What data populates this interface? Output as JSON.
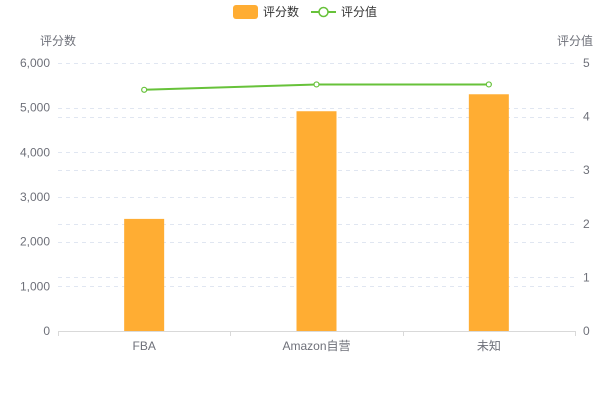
{
  "chart_data": {
    "type": "bar+line",
    "categories": [
      "FBA",
      "Amazon自营",
      "未知"
    ],
    "series": [
      {
        "name": "评分数",
        "type": "bar",
        "axis": "left",
        "color": "#ffad33",
        "values": [
          2510,
          4920,
          5300
        ]
      },
      {
        "name": "评分值",
        "type": "line",
        "axis": "right",
        "color": "#67c23a",
        "values": [
          4.5,
          4.6,
          4.6
        ]
      }
    ],
    "y_left": {
      "label": "评分数",
      "min": 0,
      "max": 6000,
      "ticks": [
        0,
        1000,
        2000,
        3000,
        4000,
        5000,
        6000
      ],
      "tick_labels": [
        "0",
        "1,000",
        "2,000",
        "3,000",
        "4,000",
        "5,000",
        "6,000"
      ]
    },
    "y_right": {
      "label": "评分值",
      "min": 0,
      "max": 5,
      "ticks": [
        0,
        1,
        2,
        3,
        4,
        5
      ],
      "tick_labels": [
        "0",
        "1",
        "2",
        "3",
        "4",
        "5"
      ]
    },
    "legend": {
      "position": "top-center",
      "items": [
        "评分数",
        "评分值"
      ]
    },
    "grid": true
  }
}
